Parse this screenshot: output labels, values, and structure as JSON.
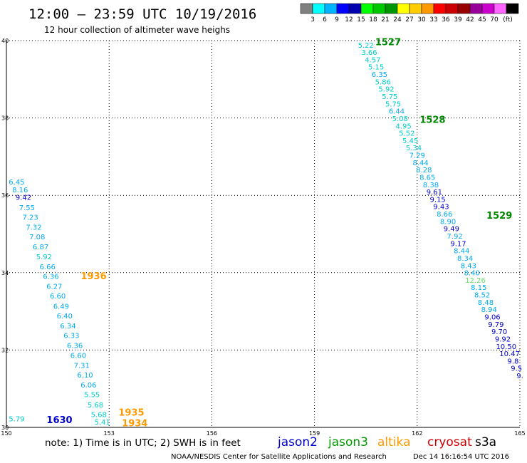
{
  "header": {
    "title": "12:00 — 23:59 UTC 10/19/2016",
    "subtitle": "12 hour collection of altimeter wave heighs"
  },
  "colorbar": {
    "colors": [
      "#808080",
      "#00ffff",
      "#00b4ff",
      "#0000ff",
      "#0000b0",
      "#00ff00",
      "#00c800",
      "#009600",
      "#ffff00",
      "#ffcc00",
      "#ff9900",
      "#ff0000",
      "#cc0000",
      "#990000",
      "#990099",
      "#cc00cc",
      "#ff66ff",
      "#000000"
    ],
    "labels": [
      "3",
      "6",
      "9",
      "12",
      "15",
      "18",
      "21",
      "24",
      "27",
      "30",
      "33",
      "36",
      "39",
      "42",
      "45",
      "70"
    ],
    "unit": "(ft)"
  },
  "footer": {
    "note": "note: 1) Time is in UTC; 2) SWH is in feet",
    "satellites": [
      {
        "name": "jason2",
        "color": "#0000cc"
      },
      {
        "name": "jason3",
        "color": "#009900"
      },
      {
        "name": "altika",
        "color": "#ff9900"
      },
      {
        "name": "cryosat",
        "color": "#cc0000"
      },
      {
        "name": "s3a",
        "color": "#000000"
      }
    ],
    "credit": "NOAA/NESDIS Center for Satellite Applications and Research",
    "timestamp": "Dec 14 16:16:54 UTC 2016"
  },
  "chart_data": {
    "type": "scatter",
    "xlim": [
      150,
      165
    ],
    "ylim": [
      30,
      40
    ],
    "x_ticks": [
      150,
      153,
      156,
      159,
      162,
      165
    ],
    "y_ticks": [
      30,
      32,
      34,
      36,
      38,
      40
    ],
    "grid": true,
    "tracks": [
      {
        "points": [
          {
            "x": 160.5,
            "y": 39.82,
            "v": "5.22",
            "c": "#00cccc"
          },
          {
            "x": 160.6,
            "y": 39.63,
            "v": "3.66",
            "c": "#00cccc"
          },
          {
            "x": 160.7,
            "y": 39.44,
            "v": "4.57",
            "c": "#00cccc"
          },
          {
            "x": 160.8,
            "y": 39.25,
            "v": "5.15",
            "c": "#00cccc"
          },
          {
            "x": 160.9,
            "y": 39.06,
            "v": "6.35",
            "c": "#00aaee"
          },
          {
            "x": 161.0,
            "y": 38.87,
            "v": "5.86",
            "c": "#00cccc"
          },
          {
            "x": 161.1,
            "y": 38.68,
            "v": "5.92",
            "c": "#00cccc"
          },
          {
            "x": 161.2,
            "y": 38.49,
            "v": "5.75",
            "c": "#00cccc"
          },
          {
            "x": 161.3,
            "y": 38.3,
            "v": "5.75",
            "c": "#00cccc"
          },
          {
            "x": 161.4,
            "y": 38.11,
            "v": "6.44",
            "c": "#00aaee"
          },
          {
            "x": 161.5,
            "y": 37.92,
            "v": "5.08",
            "c": "#00cccc"
          },
          {
            "x": 161.6,
            "y": 37.73,
            "v": "4.95",
            "c": "#00cccc"
          },
          {
            "x": 161.7,
            "y": 37.54,
            "v": "5.52",
            "c": "#00cccc"
          },
          {
            "x": 161.8,
            "y": 37.35,
            "v": "5.45",
            "c": "#00cccc"
          },
          {
            "x": 161.9,
            "y": 37.16,
            "v": "5.34",
            "c": "#00cccc"
          },
          {
            "x": 162.0,
            "y": 36.97,
            "v": "7.29",
            "c": "#00aaee"
          },
          {
            "x": 162.1,
            "y": 36.78,
            "v": "8.44",
            "c": "#00aaee"
          },
          {
            "x": 162.2,
            "y": 36.59,
            "v": "8.28",
            "c": "#00aaee"
          },
          {
            "x": 162.3,
            "y": 36.4,
            "v": "8.65",
            "c": "#00aaee"
          },
          {
            "x": 162.4,
            "y": 36.21,
            "v": "8.38",
            "c": "#00aaee"
          },
          {
            "x": 162.5,
            "y": 36.02,
            "v": "9.61",
            "c": "#0000cc"
          },
          {
            "x": 162.6,
            "y": 35.83,
            "v": "9.15",
            "c": "#0000cc"
          },
          {
            "x": 162.7,
            "y": 35.64,
            "v": "9.43",
            "c": "#0000cc"
          },
          {
            "x": 162.8,
            "y": 35.45,
            "v": "8.66",
            "c": "#00aaee"
          },
          {
            "x": 162.9,
            "y": 35.26,
            "v": "8.90",
            "c": "#00aaee"
          },
          {
            "x": 163.0,
            "y": 35.07,
            "v": "9.49",
            "c": "#0000cc"
          },
          {
            "x": 163.1,
            "y": 34.88,
            "v": "7.92",
            "c": "#00aaee"
          },
          {
            "x": 163.2,
            "y": 34.69,
            "v": "9.17",
            "c": "#0000cc"
          },
          {
            "x": 163.3,
            "y": 34.5,
            "v": "8.44",
            "c": "#00aaee"
          },
          {
            "x": 163.4,
            "y": 34.31,
            "v": "8.34",
            "c": "#00aaee"
          },
          {
            "x": 163.5,
            "y": 34.12,
            "v": "8.43",
            "c": "#00aaee"
          },
          {
            "x": 163.6,
            "y": 33.93,
            "v": "8.40",
            "c": "#00aaee"
          },
          {
            "x": 163.7,
            "y": 33.74,
            "v": "12.26",
            "c": "#66dd66"
          },
          {
            "x": 163.8,
            "y": 33.55,
            "v": "8.15",
            "c": "#00aaee"
          },
          {
            "x": 163.9,
            "y": 33.36,
            "v": "8.52",
            "c": "#00aaee"
          },
          {
            "x": 164.0,
            "y": 33.17,
            "v": "8.48",
            "c": "#00aaee"
          },
          {
            "x": 164.1,
            "y": 32.98,
            "v": "8.94",
            "c": "#00aaee"
          },
          {
            "x": 164.2,
            "y": 32.79,
            "v": "9.06",
            "c": "#0000cc"
          },
          {
            "x": 164.3,
            "y": 32.6,
            "v": "9.79",
            "c": "#0000cc"
          },
          {
            "x": 164.4,
            "y": 32.41,
            "v": "9.70",
            "c": "#0000cc"
          },
          {
            "x": 164.5,
            "y": 32.22,
            "v": "9.92",
            "c": "#0000cc"
          },
          {
            "x": 164.6,
            "y": 32.03,
            "v": "10.50",
            "c": "#0000cc"
          },
          {
            "x": 164.7,
            "y": 31.84,
            "v": "10.47",
            "c": "#0000cc"
          },
          {
            "x": 164.8,
            "y": 31.65,
            "v": "9.8",
            "c": "#0000cc"
          },
          {
            "x": 164.9,
            "y": 31.46,
            "v": "9.5",
            "c": "#0000cc"
          },
          {
            "x": 165.0,
            "y": 31.27,
            "v": "9.",
            "c": "#0000cc"
          }
        ]
      },
      {
        "points": [
          {
            "x": 150.3,
            "y": 36.28,
            "v": "6.45",
            "c": "#00aaee"
          },
          {
            "x": 150.4,
            "y": 36.08,
            "v": "8.16",
            "c": "#00aaee"
          },
          {
            "x": 150.5,
            "y": 35.88,
            "v": "9.42",
            "c": "#0000cc"
          },
          {
            "x": 150.6,
            "y": 35.62,
            "v": "7.55",
            "c": "#00aaee"
          },
          {
            "x": 150.7,
            "y": 35.37,
            "v": "7.23",
            "c": "#00aaee"
          },
          {
            "x": 150.8,
            "y": 35.11,
            "v": "7.32",
            "c": "#00aaee"
          },
          {
            "x": 150.9,
            "y": 34.86,
            "v": "7.08",
            "c": "#00aaee"
          },
          {
            "x": 151.0,
            "y": 34.6,
            "v": "6.87",
            "c": "#00aaee"
          },
          {
            "x": 151.1,
            "y": 34.35,
            "v": "5.92",
            "c": "#00cccc"
          },
          {
            "x": 151.2,
            "y": 34.09,
            "v": "6.66",
            "c": "#00aaee"
          },
          {
            "x": 151.3,
            "y": 33.84,
            "v": "6.36",
            "c": "#00aaee"
          },
          {
            "x": 151.4,
            "y": 33.58,
            "v": "6.27",
            "c": "#00aaee"
          },
          {
            "x": 151.5,
            "y": 33.33,
            "v": "6.60",
            "c": "#00aaee"
          },
          {
            "x": 151.6,
            "y": 33.07,
            "v": "6.49",
            "c": "#00aaee"
          },
          {
            "x": 151.7,
            "y": 32.82,
            "v": "6.40",
            "c": "#00aaee"
          },
          {
            "x": 151.8,
            "y": 32.56,
            "v": "6.34",
            "c": "#00aaee"
          },
          {
            "x": 151.9,
            "y": 32.31,
            "v": "6.33",
            "c": "#00aaee"
          },
          {
            "x": 152.0,
            "y": 32.05,
            "v": "6.36",
            "c": "#00aaee"
          },
          {
            "x": 152.1,
            "y": 31.8,
            "v": "6.60",
            "c": "#00aaee"
          },
          {
            "x": 152.2,
            "y": 31.54,
            "v": "7.31",
            "c": "#00aaee"
          },
          {
            "x": 152.3,
            "y": 31.29,
            "v": "6.10",
            "c": "#00aaee"
          },
          {
            "x": 152.4,
            "y": 31.03,
            "v": "6.06",
            "c": "#00aaee"
          },
          {
            "x": 152.5,
            "y": 30.78,
            "v": "5.55",
            "c": "#00cccc"
          },
          {
            "x": 152.6,
            "y": 30.52,
            "v": "5.68",
            "c": "#00cccc"
          },
          {
            "x": 152.7,
            "y": 30.27,
            "v": "5.68",
            "c": "#00cccc"
          },
          {
            "x": 152.8,
            "y": 30.07,
            "v": "5.41",
            "c": "#00cccc"
          }
        ]
      },
      {
        "points": [
          {
            "x": 150.3,
            "y": 30.16,
            "v": "5.79",
            "c": "#00cccc"
          }
        ]
      }
    ],
    "time_labels": [
      {
        "x": 161.15,
        "y": 39.88,
        "text": "1527",
        "c": "#008800"
      },
      {
        "x": 162.45,
        "y": 37.87,
        "text": "1528",
        "c": "#008800"
      },
      {
        "x": 164.4,
        "y": 35.4,
        "text": "1529",
        "c": "#008800"
      },
      {
        "x": 152.55,
        "y": 33.83,
        "text": "1936",
        "c": "#ff9900"
      },
      {
        "x": 151.55,
        "y": 30.11,
        "text": "1630",
        "c": "#0000cc"
      },
      {
        "x": 153.65,
        "y": 30.3,
        "text": "1935",
        "c": "#ff9900"
      },
      {
        "x": 153.75,
        "y": 30.03,
        "text": "1934",
        "c": "#ff9900"
      }
    ]
  }
}
